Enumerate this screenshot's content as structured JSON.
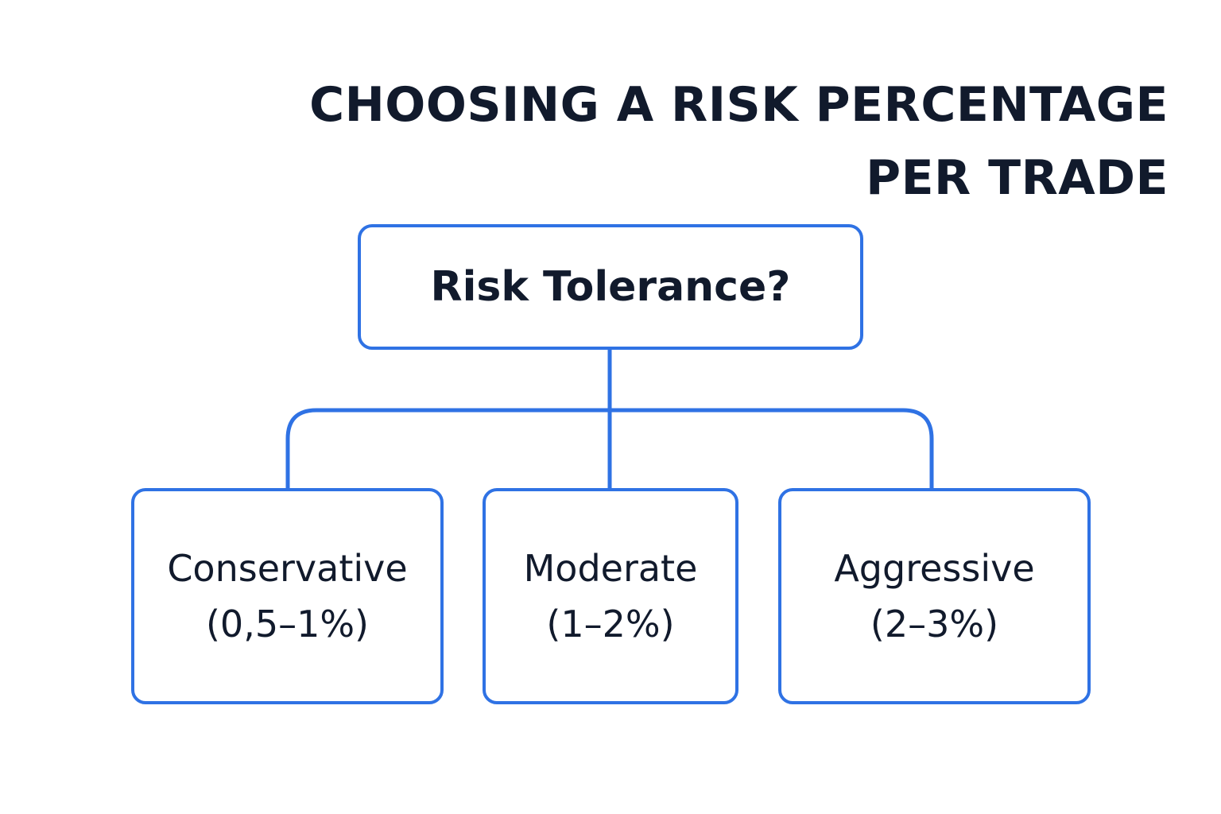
{
  "title": {
    "line1": "CHOOSING A RISK PERCENTAGE",
    "line2": "PER TRADE"
  },
  "root": {
    "label": "Risk Tolerance?"
  },
  "options": [
    {
      "name": "Conservative",
      "range": "(0,5–1%)"
    },
    {
      "name": "Moderate",
      "range": "(1–2%)"
    },
    {
      "name": "Aggressive",
      "range": "(2–3%)"
    }
  ],
  "colors": {
    "accent": "#2f72e4",
    "text": "#111a2c",
    "background": "#ffffff"
  }
}
